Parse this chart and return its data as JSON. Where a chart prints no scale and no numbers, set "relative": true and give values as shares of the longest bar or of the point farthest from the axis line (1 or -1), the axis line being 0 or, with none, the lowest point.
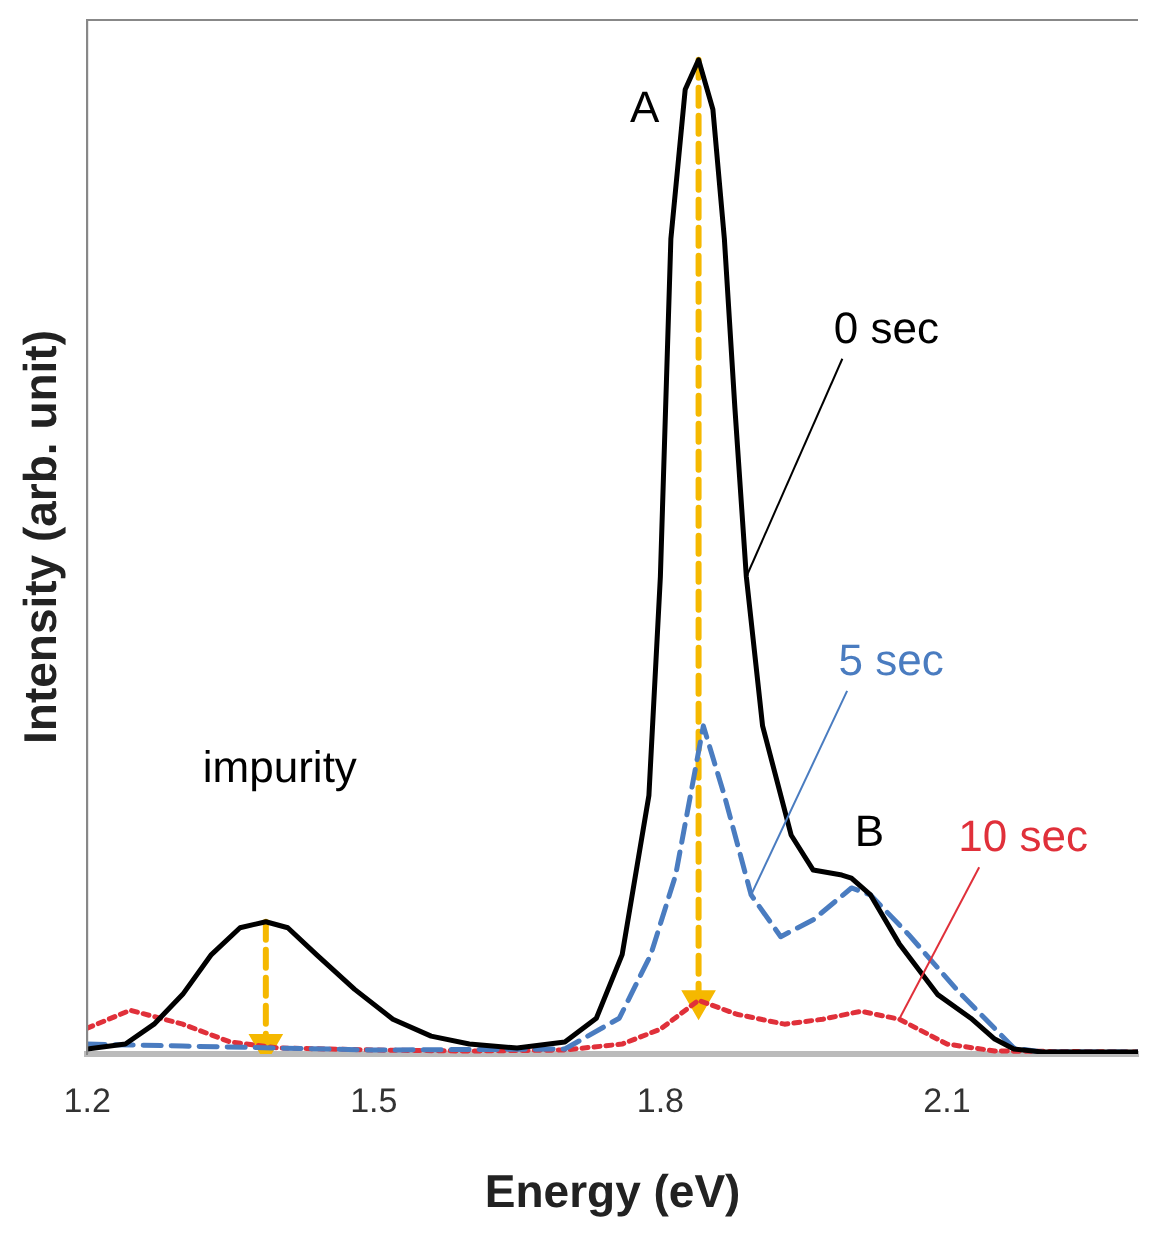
{
  "chart_data": {
    "type": "line",
    "relative": true,
    "xlabel": "Energy (eV)",
    "ylabel": "Intensity (arb. unit)",
    "xlim": [
      1.2,
      2.3
    ],
    "xticks": [
      1.2,
      1.5,
      1.8,
      2.1
    ],
    "grid": false,
    "legend": false,
    "marker": "none",
    "series": [
      {
        "name": "0 sec",
        "color": "#000000",
        "line_style": "solid",
        "x": [
          1.2,
          1.24,
          1.27,
          1.3,
          1.33,
          1.36,
          1.387,
          1.41,
          1.44,
          1.48,
          1.52,
          1.56,
          1.6,
          1.65,
          1.7,
          1.733,
          1.76,
          1.788,
          1.8,
          1.811,
          1.826,
          1.84,
          1.855,
          1.867,
          1.878,
          1.89,
          1.907,
          1.937,
          1.96,
          1.99,
          2.0,
          2.02,
          2.05,
          2.09,
          2.125,
          2.15,
          2.17,
          2.2,
          2.3
        ],
        "values": [
          0.005,
          0.01,
          0.03,
          0.06,
          0.1,
          0.127,
          0.133,
          0.127,
          0.1,
          0.065,
          0.035,
          0.018,
          0.01,
          0.006,
          0.012,
          0.036,
          0.1,
          0.26,
          0.48,
          0.82,
          0.97,
          1.0,
          0.95,
          0.82,
          0.65,
          0.48,
          0.33,
          0.22,
          0.185,
          0.18,
          0.177,
          0.16,
          0.111,
          0.06,
          0.036,
          0.015,
          0.005,
          0.002,
          0.002
        ]
      },
      {
        "name": "5 sec",
        "color": "#4a7cc0",
        "line_style": "dashed",
        "x": [
          1.2,
          1.3,
          1.5,
          1.7,
          1.757,
          1.79,
          1.816,
          1.845,
          1.867,
          1.895,
          1.926,
          1.96,
          2.0,
          2.02,
          2.06,
          2.11,
          2.17,
          2.2,
          2.3
        ],
        "values": [
          0.01,
          0.008,
          0.004,
          0.005,
          0.036,
          0.1,
          0.18,
          0.33,
          0.26,
          0.16,
          0.118,
          0.135,
          0.167,
          0.16,
          0.12,
          0.065,
          0.006,
          0.002,
          0.002
        ]
      },
      {
        "name": "10 sec",
        "color": "#e0303a",
        "line_style": "dotted",
        "x": [
          1.2,
          1.245,
          1.3,
          1.35,
          1.4,
          1.5,
          1.6,
          1.7,
          1.76,
          1.8,
          1.84,
          1.88,
          1.93,
          1.97,
          2.01,
          2.05,
          2.1,
          2.15,
          2.3
        ],
        "values": [
          0.026,
          0.044,
          0.03,
          0.012,
          0.006,
          0.004,
          0.003,
          0.004,
          0.01,
          0.025,
          0.054,
          0.04,
          0.03,
          0.035,
          0.043,
          0.035,
          0.01,
          0.003,
          0.002
        ]
      },
      {
        "color": "#f5b800",
        "line_style": "dashed",
        "marker": "triangle",
        "x": [
          1.387,
          1.387
        ],
        "values": [
          0.133,
          0.01
        ]
      },
      {
        "color": "#f5b800",
        "line_style": "dashed",
        "marker": "triangle",
        "x": [
          1.84,
          1.84
        ],
        "values": [
          1.0,
          0.054
        ]
      }
    ],
    "annotations": [
      {
        "text": "A",
        "x": 1.84,
        "y": 1.0
      },
      {
        "text": "B",
        "x": 2.0,
        "y": 0.177
      },
      {
        "text": "impurity",
        "x": 1.387,
        "y": 0.133
      }
    ]
  }
}
